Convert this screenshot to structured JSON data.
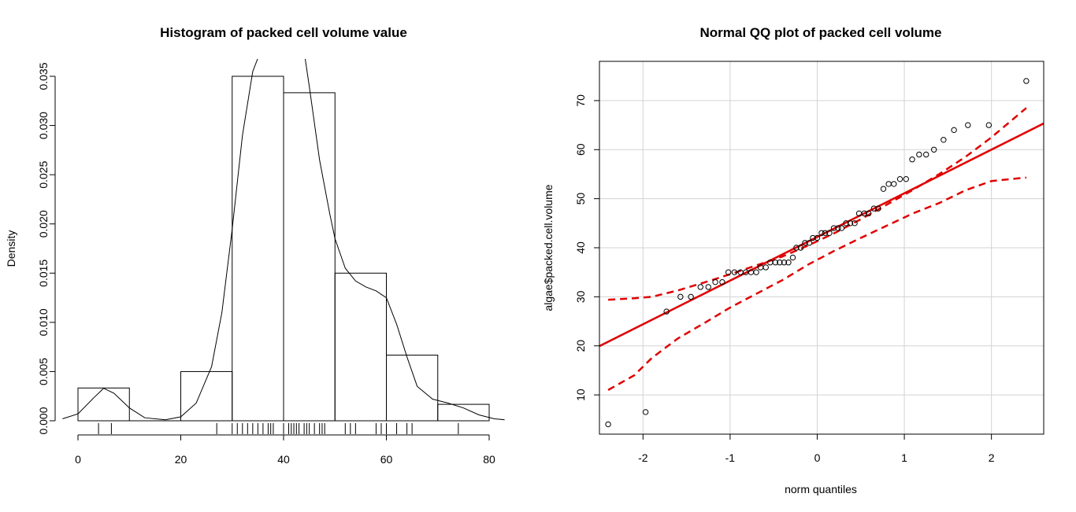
{
  "colors": {
    "ink": "#000000",
    "red": "#e00000",
    "grid": "#d3d3d3"
  },
  "chart_data": [
    {
      "type": "bar",
      "subtype": "histogram-with-density-and-rug",
      "title": "Histogram of packed cell volume value",
      "xlabel": "",
      "ylabel": "Density",
      "xlim": [
        0,
        80
      ],
      "ylim": [
        0,
        0.035
      ],
      "x_ticks": [
        "0",
        "20",
        "40",
        "60",
        "80"
      ],
      "y_ticks": [
        "0.000",
        "0.005",
        "0.010",
        "0.015",
        "0.020",
        "0.025",
        "0.030",
        "0.035"
      ],
      "bins": [
        [
          0,
          10
        ],
        [
          10,
          20
        ],
        [
          20,
          30
        ],
        [
          30,
          40
        ],
        [
          40,
          50
        ],
        [
          50,
          60
        ],
        [
          60,
          70
        ],
        [
          70,
          80
        ]
      ],
      "values": [
        0.00333,
        0,
        0.005,
        0.035,
        0.03333,
        0.015,
        0.00667,
        0.00167
      ],
      "density_curve": [
        [
          -3,
          0.0002
        ],
        [
          0,
          0.0007
        ],
        [
          3,
          0.0023
        ],
        [
          5,
          0.0033
        ],
        [
          7,
          0.0028
        ],
        [
          10,
          0.0013
        ],
        [
          13,
          0.0003
        ],
        [
          17,
          0.0001
        ],
        [
          20,
          0.0004
        ],
        [
          23,
          0.0018
        ],
        [
          26,
          0.0055
        ],
        [
          28,
          0.011
        ],
        [
          30,
          0.0195
        ],
        [
          32,
          0.029
        ],
        [
          34,
          0.0355
        ],
        [
          35.5,
          0.0375
        ],
        [
          44,
          0.0375
        ],
        [
          45,
          0.034
        ],
        [
          47,
          0.0265
        ],
        [
          49,
          0.021
        ],
        [
          50,
          0.0185
        ],
        [
          52,
          0.0155
        ],
        [
          54,
          0.0142
        ],
        [
          56,
          0.0136
        ],
        [
          58,
          0.0132
        ],
        [
          60,
          0.0125
        ],
        [
          62,
          0.0098
        ],
        [
          64,
          0.0065
        ],
        [
          66,
          0.0035
        ],
        [
          69,
          0.0022
        ],
        [
          72,
          0.0018
        ],
        [
          75,
          0.0013
        ],
        [
          78,
          0.0006
        ],
        [
          81,
          0.0002
        ],
        [
          83,
          0.0001
        ]
      ],
      "rug": [
        4,
        6.5,
        27,
        30,
        31,
        32,
        33,
        34,
        35,
        36,
        37,
        37.5,
        38,
        40,
        41,
        41.5,
        42,
        42.5,
        43,
        44,
        44.5,
        45,
        46,
        47,
        47.5,
        48,
        52,
        53,
        54,
        58,
        59,
        60,
        62,
        64,
        65,
        74
      ]
    },
    {
      "type": "scatter",
      "subtype": "normal-qq-plot",
      "title": "Normal QQ plot of packed cell volume",
      "xlabel": "norm quantiles",
      "ylabel": "algae$packed.cell.volume",
      "xlim": [
        -2.5,
        2.6
      ],
      "ylim": [
        2,
        78
      ],
      "x_ticks": [
        "-2",
        "-1",
        "0",
        "1",
        "2"
      ],
      "y_ticks": [
        "10",
        "20",
        "30",
        "40",
        "50",
        "60",
        "70"
      ],
      "grid": true,
      "points": [
        [
          -2.4,
          4
        ],
        [
          -1.97,
          6.5
        ],
        [
          -1.73,
          27
        ],
        [
          -1.57,
          30
        ],
        [
          -1.45,
          30
        ],
        [
          -1.34,
          32
        ],
        [
          -1.25,
          32
        ],
        [
          -1.17,
          33
        ],
        [
          -1.09,
          33
        ],
        [
          -1.02,
          35
        ],
        [
          -0.95,
          35
        ],
        [
          -0.88,
          35
        ],
        [
          -0.82,
          35
        ],
        [
          -0.76,
          35
        ],
        [
          -0.7,
          35
        ],
        [
          -0.65,
          36
        ],
        [
          -0.59,
          36
        ],
        [
          -0.54,
          37
        ],
        [
          -0.48,
          37
        ],
        [
          -0.43,
          37
        ],
        [
          -0.38,
          37
        ],
        [
          -0.33,
          37
        ],
        [
          -0.28,
          38
        ],
        [
          -0.24,
          40
        ],
        [
          -0.19,
          40
        ],
        [
          -0.14,
          41
        ],
        [
          -0.09,
          41
        ],
        [
          -0.05,
          42
        ],
        [
          0.0,
          42
        ],
        [
          0.05,
          43
        ],
        [
          0.09,
          43
        ],
        [
          0.14,
          43
        ],
        [
          0.19,
          44
        ],
        [
          0.24,
          44
        ],
        [
          0.28,
          44
        ],
        [
          0.33,
          45
        ],
        [
          0.38,
          45
        ],
        [
          0.43,
          45
        ],
        [
          0.48,
          47
        ],
        [
          0.54,
          47
        ],
        [
          0.59,
          47
        ],
        [
          0.65,
          48
        ],
        [
          0.7,
          48
        ],
        [
          0.76,
          52
        ],
        [
          0.82,
          53
        ],
        [
          0.88,
          53
        ],
        [
          0.95,
          54
        ],
        [
          1.02,
          54
        ],
        [
          1.09,
          58
        ],
        [
          1.17,
          59
        ],
        [
          1.25,
          59
        ],
        [
          1.34,
          60
        ],
        [
          1.45,
          62
        ],
        [
          1.57,
          64
        ],
        [
          1.73,
          65
        ],
        [
          1.97,
          65
        ],
        [
          2.4,
          74
        ]
      ],
      "reference_line": {
        "intercept": 42.2,
        "slope": 8.9
      },
      "confidence_upper": [
        [
          -2.4,
          29.4
        ],
        [
          -2.1,
          29.7
        ],
        [
          -1.9,
          30.0
        ],
        [
          -1.6,
          31.3
        ],
        [
          -1.3,
          32.9
        ],
        [
          -1.0,
          34.6
        ],
        [
          -0.7,
          36.4
        ],
        [
          -0.4,
          38.2
        ],
        [
          -0.1,
          40.5
        ],
        [
          0.2,
          43.0
        ],
        [
          0.5,
          45.8
        ],
        [
          0.8,
          48.8
        ],
        [
          1.1,
          51.8
        ],
        [
          1.4,
          55.0
        ],
        [
          1.7,
          58.5
        ],
        [
          2.0,
          62.5
        ],
        [
          2.4,
          68.5
        ]
      ],
      "confidence_lower": [
        [
          -2.4,
          11.0
        ],
        [
          -2.1,
          14.0
        ],
        [
          -1.9,
          17.5
        ],
        [
          -1.6,
          21.5
        ],
        [
          -1.3,
          24.6
        ],
        [
          -1.0,
          27.8
        ],
        [
          -0.7,
          30.6
        ],
        [
          -0.4,
          33.4
        ],
        [
          -0.1,
          36.6
        ],
        [
          0.2,
          39.4
        ],
        [
          0.5,
          42.0
        ],
        [
          0.8,
          44.5
        ],
        [
          1.1,
          47.0
        ],
        [
          1.4,
          49.1
        ],
        [
          1.7,
          51.7
        ],
        [
          2.0,
          53.6
        ],
        [
          2.4,
          54.3
        ]
      ]
    }
  ]
}
